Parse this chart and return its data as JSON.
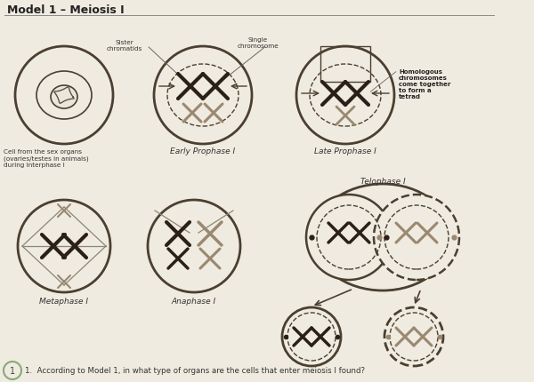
{
  "title": "Model 1 – Meiosis I",
  "paper_color": "#f0ebe0",
  "line_color": "#4a3f30",
  "dark_chr": "#2a2018",
  "gray_chr": "#9a8870",
  "labels": {
    "sister_chromatids": "Sister\nchromatids",
    "single_chromosome": "Single\nchromosome",
    "homologous": "Homologous\nchromosomes\ncome together\nto form a\ntetrad",
    "interphase": "Cell from the sex organs\n(ovaries/testes in animals)\nduring Interphase I",
    "early_prophase": "Early Prophase I",
    "late_prophase": "Late Prophase I",
    "metaphase": "Metaphase I",
    "anaphase": "Anaphase I",
    "telophase": "Telophase I"
  },
  "question": "1.  According to Model 1, in what type of organs are the cells that enter meiosis I found?"
}
